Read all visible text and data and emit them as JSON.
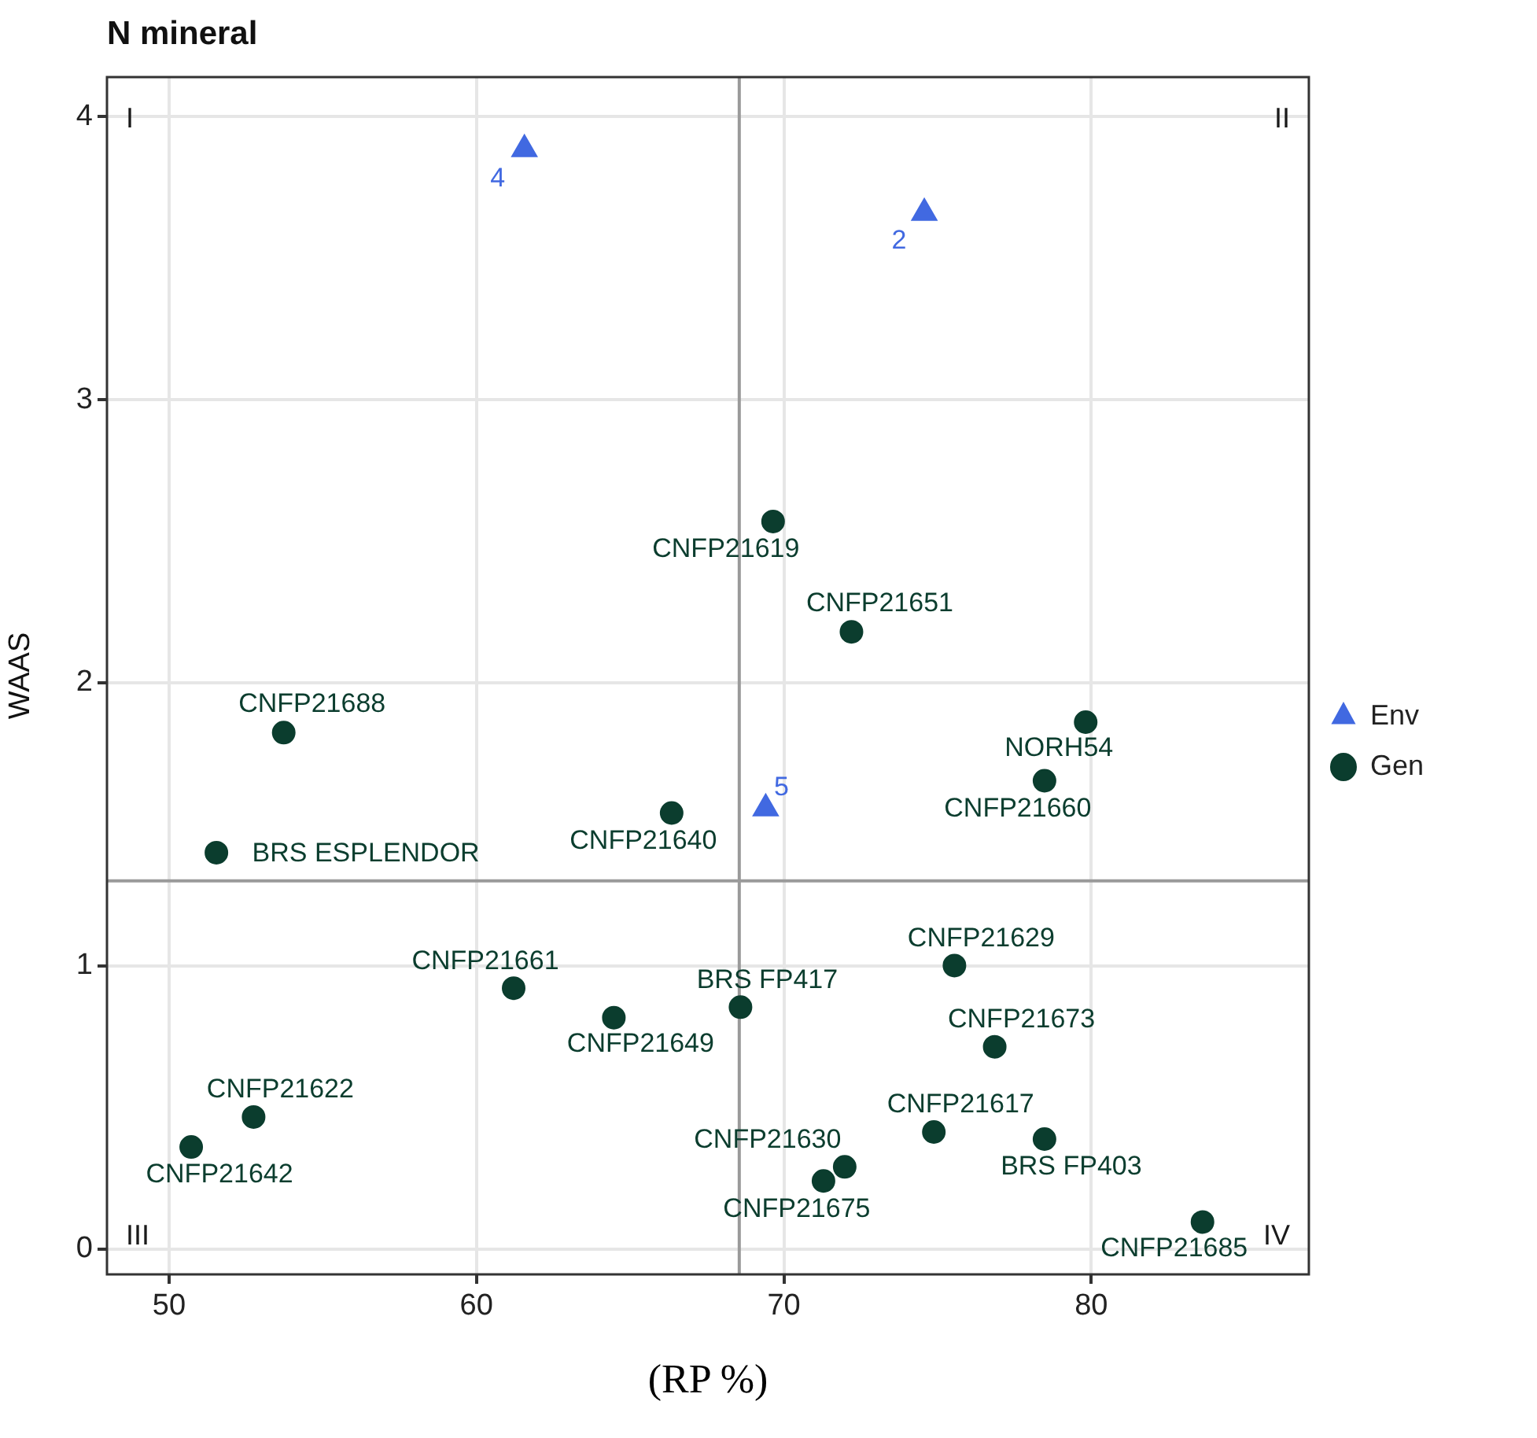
{
  "chart_data": {
    "type": "scatter",
    "title": "N mineral",
    "xlabel": "(RP %)",
    "ylabel": "WAAS",
    "xlim": [
      47.98,
      87.08
    ],
    "xticks": [
      50,
      60,
      70,
      80
    ],
    "ylim": [
      -0.09,
      4.14
    ],
    "yticks": [
      0,
      1,
      2,
      3,
      4
    ],
    "grid": true,
    "legend": "right",
    "series": [
      {
        "name": "Env",
        "color": "#4169e1",
        "marker": "triangle",
        "x": [
          61.56,
          74.57,
          69.41
        ],
        "values": [
          3.885,
          3.66,
          1.556
        ]
      },
      {
        "name": "Gen",
        "color": "#0b3d2e",
        "marker": "circle",
        "x": [
          69.65,
          72.2,
          53.73,
          51.54,
          66.35,
          79.82,
          78.48,
          75.55,
          61.21,
          64.47,
          68.59,
          76.86,
          52.75,
          50.72,
          74.88,
          78.48,
          71.98,
          71.29,
          83.62
        ],
        "values": [
          2.57,
          2.18,
          1.824,
          1.4,
          1.54,
          1.861,
          1.654,
          1.001,
          0.921,
          0.817,
          0.854,
          0.714,
          0.466,
          0.36,
          0.413,
          0.388,
          0.29,
          0.24,
          0.095
        ]
      }
    ],
    "ref_lines": [
      {
        "axis": "x",
        "value": 68.55,
        "color": "#9a9a9a"
      },
      {
        "axis": "y",
        "value": 1.3,
        "color": "#9a9a9a"
      }
    ],
    "annotations": [
      "I",
      "II",
      "III",
      "IV",
      {
        "text": "4",
        "x": 61.56,
        "y": 3.885
      },
      {
        "text": "2",
        "x": 74.57,
        "y": 3.66
      },
      {
        "text": "5",
        "x": 69.41,
        "y": 1.556
      },
      {
        "text": "CNFP21619",
        "x": 69.65,
        "y": 2.57
      },
      {
        "text": "CNFP21651",
        "x": 72.2,
        "y": 2.18
      },
      {
        "text": "CNFP21688",
        "x": 53.73,
        "y": 1.824
      },
      {
        "text": "BRS ESPLENDOR",
        "x": 51.54,
        "y": 1.4
      },
      {
        "text": "CNFP21640",
        "x": 66.35,
        "y": 1.54
      },
      {
        "text": "NORH54",
        "x": 79.82,
        "y": 1.861
      },
      {
        "text": "CNFP21660",
        "x": 78.48,
        "y": 1.654
      },
      {
        "text": "CNFP21629",
        "x": 75.55,
        "y": 1.001
      },
      {
        "text": "CNFP21661",
        "x": 61.21,
        "y": 0.921
      },
      {
        "text": "CNFP21649",
        "x": 64.47,
        "y": 0.817
      },
      {
        "text": "BRS FP417",
        "x": 68.59,
        "y": 0.854
      },
      {
        "text": "CNFP21673",
        "x": 76.86,
        "y": 0.714
      },
      {
        "text": "CNFP21622",
        "x": 52.75,
        "y": 0.466
      },
      {
        "text": "CNFP21642",
        "x": 50.72,
        "y": 0.36
      },
      {
        "text": "CNFP21617",
        "x": 74.88,
        "y": 0.413
      },
      {
        "text": "BRS FP403",
        "x": 78.48,
        "y": 0.388
      },
      {
        "text": "CNFP21630",
        "x": 71.98,
        "y": 0.29
      },
      {
        "text": "CNFP21675",
        "x": 71.29,
        "y": 0.24
      },
      {
        "text": "CNFP21685",
        "x": 83.62,
        "y": 0.095
      }
    ]
  }
}
